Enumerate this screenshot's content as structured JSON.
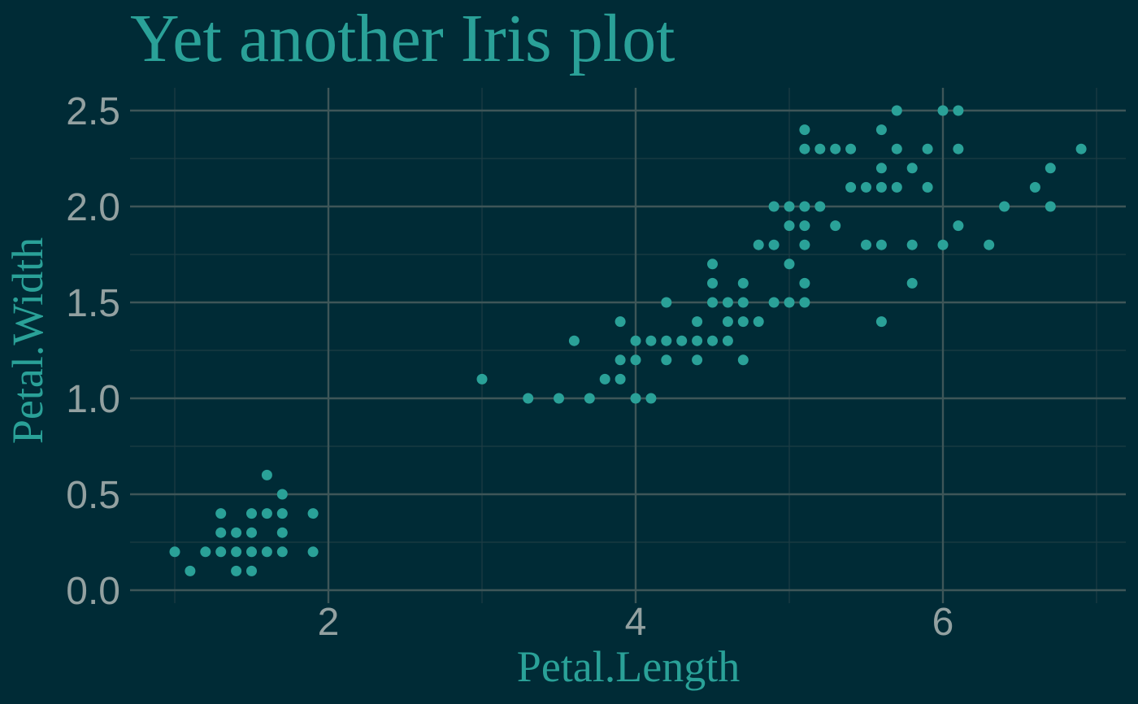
{
  "chart_data": {
    "type": "scatter",
    "title": "Yet another Iris plot",
    "xlabel": "Petal.Length",
    "ylabel": "Petal.Width",
    "xlim": [
      0.7,
      7.2
    ],
    "ylim": [
      -0.03,
      2.62
    ],
    "x_ticks": [
      2,
      4,
      6
    ],
    "x_tick_labels": [
      "2",
      "4",
      "6"
    ],
    "x_minor_ticks": [
      1,
      3,
      5,
      7
    ],
    "y_ticks": [
      0,
      0.5,
      1,
      1.5,
      2,
      2.5
    ],
    "y_tick_labels": [
      "0.0",
      "0.5",
      "1.0",
      "1.5",
      "2.0",
      "2.5"
    ],
    "y_minor_ticks": [
      0.25,
      0.75,
      1.25,
      1.75,
      2.25
    ],
    "grid": true,
    "series": [
      {
        "name": "Iris",
        "points": [
          [
            1.0,
            0.2
          ],
          [
            1.1,
            0.1
          ],
          [
            1.2,
            0.2
          ],
          [
            1.3,
            0.2
          ],
          [
            1.3,
            0.3
          ],
          [
            1.3,
            0.4
          ],
          [
            1.4,
            0.1
          ],
          [
            1.4,
            0.2
          ],
          [
            1.4,
            0.3
          ],
          [
            1.5,
            0.1
          ],
          [
            1.5,
            0.2
          ],
          [
            1.5,
            0.3
          ],
          [
            1.5,
            0.4
          ],
          [
            1.6,
            0.2
          ],
          [
            1.6,
            0.4
          ],
          [
            1.6,
            0.6
          ],
          [
            1.7,
            0.2
          ],
          [
            1.7,
            0.3
          ],
          [
            1.7,
            0.4
          ],
          [
            1.7,
            0.5
          ],
          [
            1.9,
            0.2
          ],
          [
            1.9,
            0.4
          ],
          [
            3.0,
            1.1
          ],
          [
            3.3,
            1.0
          ],
          [
            3.5,
            1.0
          ],
          [
            3.6,
            1.3
          ],
          [
            3.7,
            1.0
          ],
          [
            3.8,
            1.1
          ],
          [
            3.9,
            1.1
          ],
          [
            3.9,
            1.2
          ],
          [
            3.9,
            1.4
          ],
          [
            4.0,
            1.0
          ],
          [
            4.0,
            1.2
          ],
          [
            4.0,
            1.3
          ],
          [
            4.1,
            1.0
          ],
          [
            4.1,
            1.3
          ],
          [
            4.2,
            1.2
          ],
          [
            4.2,
            1.3
          ],
          [
            4.2,
            1.5
          ],
          [
            4.3,
            1.3
          ],
          [
            4.4,
            1.2
          ],
          [
            4.4,
            1.3
          ],
          [
            4.4,
            1.4
          ],
          [
            4.5,
            1.3
          ],
          [
            4.5,
            1.5
          ],
          [
            4.5,
            1.6
          ],
          [
            4.5,
            1.7
          ],
          [
            4.6,
            1.3
          ],
          [
            4.6,
            1.4
          ],
          [
            4.6,
            1.5
          ],
          [
            4.7,
            1.2
          ],
          [
            4.7,
            1.4
          ],
          [
            4.7,
            1.5
          ],
          [
            4.7,
            1.6
          ],
          [
            4.8,
            1.4
          ],
          [
            4.8,
            1.8
          ],
          [
            4.9,
            1.5
          ],
          [
            4.9,
            1.8
          ],
          [
            4.9,
            2.0
          ],
          [
            5.0,
            1.5
          ],
          [
            5.0,
            1.7
          ],
          [
            5.0,
            1.9
          ],
          [
            5.0,
            2.0
          ],
          [
            5.1,
            1.5
          ],
          [
            5.1,
            1.6
          ],
          [
            5.1,
            1.8
          ],
          [
            5.1,
            1.9
          ],
          [
            5.1,
            2.0
          ],
          [
            5.1,
            2.3
          ],
          [
            5.1,
            2.4
          ],
          [
            5.2,
            2.0
          ],
          [
            5.2,
            2.3
          ],
          [
            5.3,
            1.9
          ],
          [
            5.3,
            2.3
          ],
          [
            5.4,
            2.1
          ],
          [
            5.4,
            2.3
          ],
          [
            5.5,
            1.8
          ],
          [
            5.5,
            2.1
          ],
          [
            5.6,
            1.4
          ],
          [
            5.6,
            1.8
          ],
          [
            5.6,
            2.1
          ],
          [
            5.6,
            2.2
          ],
          [
            5.6,
            2.4
          ],
          [
            5.7,
            2.1
          ],
          [
            5.7,
            2.3
          ],
          [
            5.7,
            2.5
          ],
          [
            5.8,
            1.6
          ],
          [
            5.8,
            1.8
          ],
          [
            5.8,
            2.2
          ],
          [
            5.9,
            2.1
          ],
          [
            5.9,
            2.3
          ],
          [
            6.0,
            1.8
          ],
          [
            6.0,
            2.5
          ],
          [
            6.1,
            1.9
          ],
          [
            6.1,
            2.3
          ],
          [
            6.1,
            2.5
          ],
          [
            6.3,
            1.8
          ],
          [
            6.4,
            2.0
          ],
          [
            6.6,
            2.1
          ],
          [
            6.7,
            2.0
          ],
          [
            6.7,
            2.2
          ],
          [
            6.9,
            2.3
          ]
        ]
      }
    ]
  },
  "colors": {
    "background": "#002b36",
    "point": "#2aa198",
    "title": "#2aa198",
    "axis_title": "#2aa198",
    "tick_label": "#93a1a1",
    "grid_major": "#3e5658",
    "grid_minor": "#1e3c44"
  }
}
